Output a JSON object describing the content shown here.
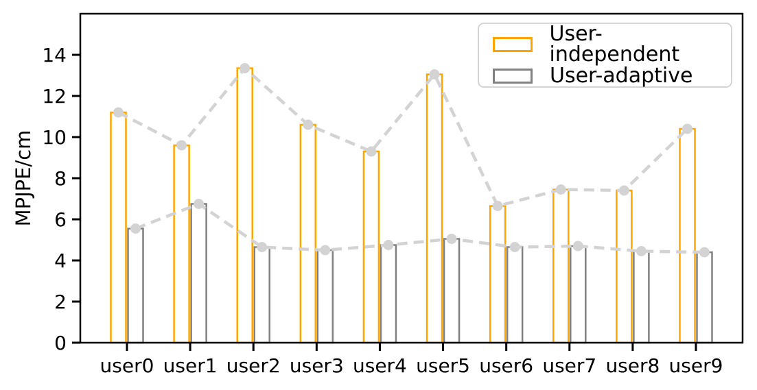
{
  "figure": {
    "background": "#ffffff"
  },
  "chart_data": {
    "type": "bar",
    "title": "",
    "xlabel": "",
    "ylabel": "MPJPE/cm",
    "categories": [
      "user0",
      "user1",
      "user2",
      "user3",
      "user4",
      "user5",
      "user6",
      "user7",
      "user8",
      "user9"
    ],
    "series": [
      {
        "name": "User-independent",
        "color": "#FFA500",
        "values": [
          11.2,
          9.6,
          13.35,
          10.6,
          9.3,
          13.05,
          6.65,
          7.45,
          7.4,
          10.4
        ]
      },
      {
        "name": "User-adaptive",
        "color": "#808080",
        "values": [
          5.55,
          6.75,
          4.65,
          4.5,
          4.75,
          5.05,
          4.65,
          4.7,
          4.45,
          4.4
        ]
      }
    ],
    "ylim": [
      0,
      16
    ],
    "yticks": [
      0,
      2,
      4,
      6,
      8,
      10,
      12,
      14
    ],
    "grid": false,
    "bar_fill": "hollow",
    "connector_lines": {
      "style": "dashed",
      "color": "#d3d3d3",
      "marker": "circle",
      "marker_color": "#d3d3d3"
    },
    "legend": {
      "position": "upper-right",
      "labels": [
        "User-independent",
        "User-adaptive"
      ]
    },
    "axis_color": "#000000",
    "tick_label_color": "#000000"
  }
}
